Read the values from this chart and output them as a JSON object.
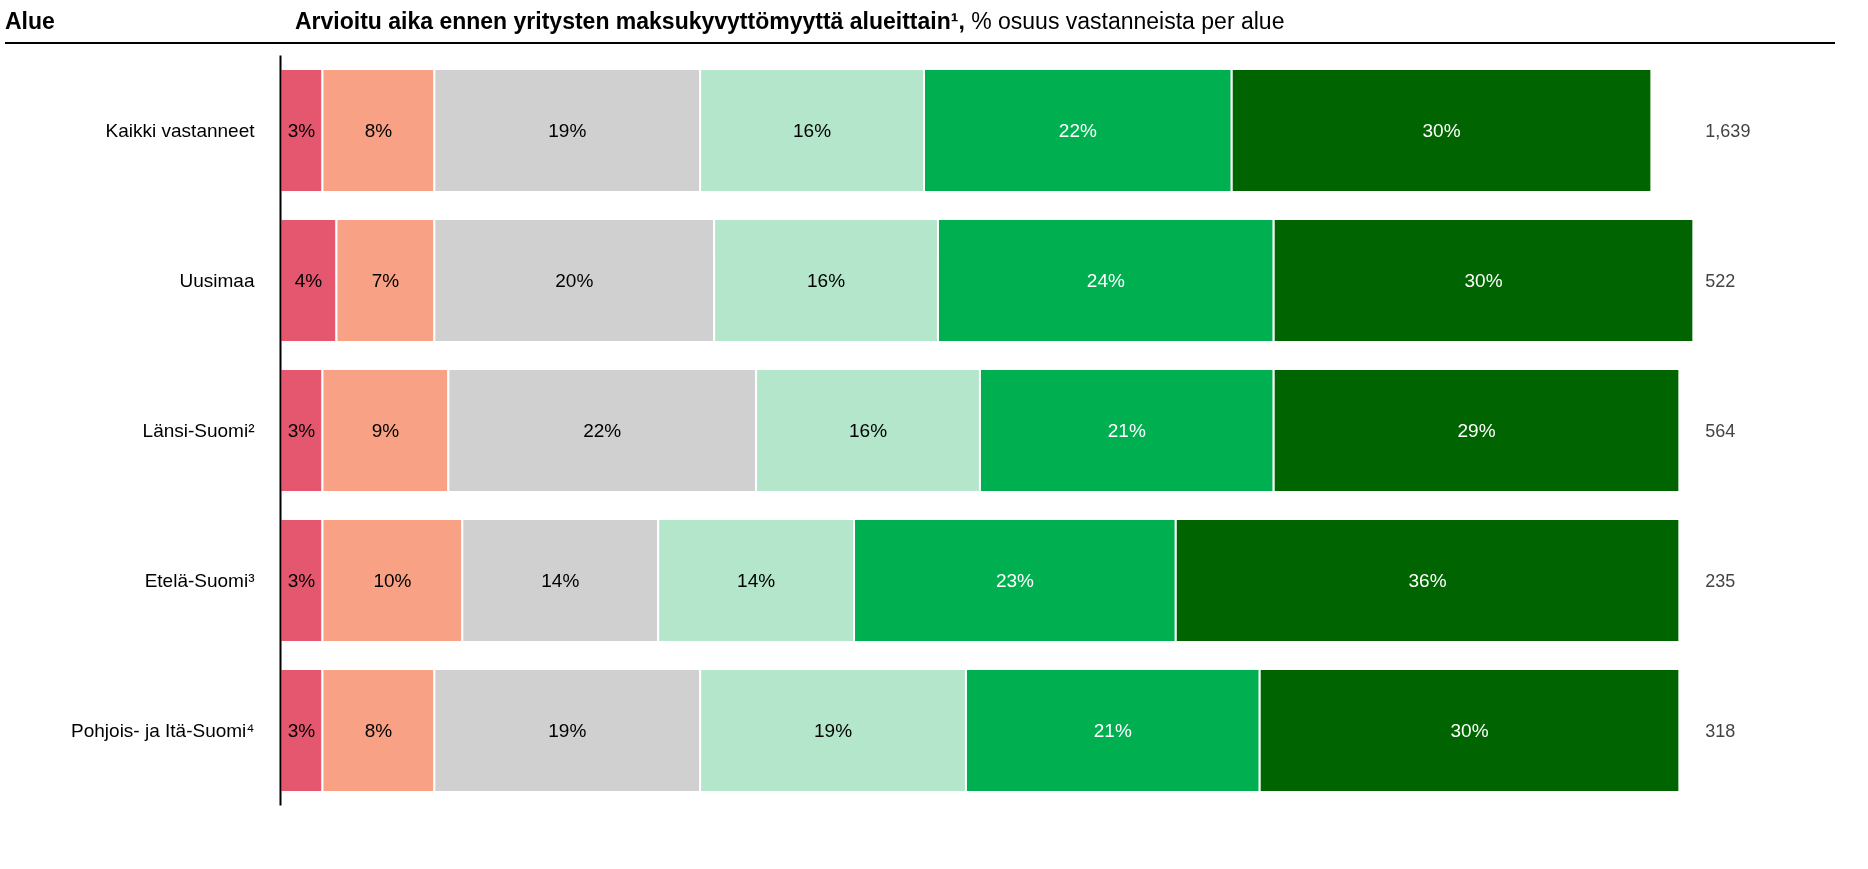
{
  "chart_data": {
    "type": "bar",
    "orientation": "horizontal",
    "stacked": true,
    "tick_labels": "y",
    "grid": false,
    "title": "Arvioitu aika ennen yritysten maksukyvyttömyyttä alueittain¹,",
    "subtitle": "% osuus vastanneista per alue",
    "ylabel": "Alue",
    "categories": [
      "Kaikki vastanneet",
      "Uusimaa",
      "Länsi-Suomi²",
      "Etelä-Suomi³",
      "Pohjois- ja Itä-Suomi⁴"
    ],
    "series": [
      {
        "color": "#e5566f",
        "values": [
          3,
          4,
          3,
          3,
          3
        ],
        "value_labels": [
          "3%",
          "4%",
          "3%",
          "3%",
          "3%"
        ]
      },
      {
        "color": "#f8a185",
        "values": [
          8,
          7,
          9,
          10,
          8
        ],
        "value_labels": [
          "8%",
          "7%",
          "9%",
          "10%",
          "8%"
        ]
      },
      {
        "color": "#d0d0d0",
        "values": [
          19,
          20,
          22,
          14,
          19
        ],
        "value_labels": [
          "19%",
          "20%",
          "22%",
          "14%",
          "19%"
        ]
      },
      {
        "color": "#b3e6cb",
        "values": [
          16,
          16,
          16,
          14,
          19
        ],
        "value_labels": [
          "16%",
          "16%",
          "16%",
          "14%",
          "19%"
        ]
      },
      {
        "color": "#00b050",
        "values": [
          22,
          24,
          21,
          23,
          21
        ],
        "value_labels": [
          "22%",
          "24%",
          "21%",
          "23%",
          "21%"
        ]
      },
      {
        "color": "#006400",
        "values": [
          30,
          30,
          29,
          36,
          30
        ],
        "value_labels": [
          "30%",
          "30%",
          "29%",
          "36%",
          "30%"
        ]
      }
    ],
    "annotations": [
      "1,639",
      "522",
      "564",
      "235",
      "318"
    ]
  }
}
